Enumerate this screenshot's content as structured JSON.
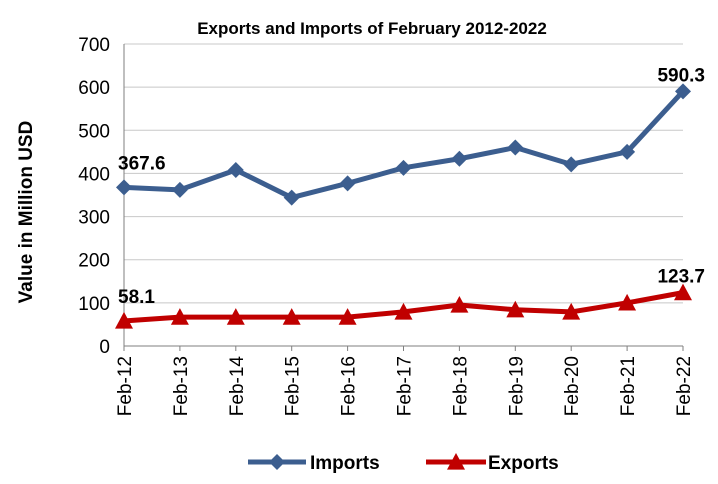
{
  "chart_data": {
    "type": "line",
    "title": "Exports and Imports of February 2012-2022",
    "ylabel": "Value in  Million  USD",
    "xlabel": "",
    "categories": [
      "Feb-12",
      "Feb-13",
      "Feb-14",
      "Feb-15",
      "Feb-16",
      "Feb-17",
      "Feb-18",
      "Feb-19",
      "Feb-20",
      "Feb-21",
      "Feb-22"
    ],
    "ylim": [
      0,
      700
    ],
    "yticks": [
      0,
      100,
      200,
      300,
      400,
      500,
      600,
      700
    ],
    "grid": true,
    "legend": "bottom",
    "series": [
      {
        "name": "Imports",
        "color": "#3C5E8F",
        "marker": "diamond",
        "values": [
          367.6,
          362,
          408,
          344,
          377,
          413,
          434,
          460,
          421,
          450,
          590.3
        ]
      },
      {
        "name": "Exports",
        "color": "#C00000",
        "marker": "triangle",
        "values": [
          58.1,
          67,
          67,
          67,
          67,
          79,
          95,
          84,
          79,
          100,
          123.7
        ]
      }
    ],
    "data_labels": [
      {
        "series": 0,
        "index": 0,
        "text": "367.6"
      },
      {
        "series": 0,
        "index": 10,
        "text": "590.3"
      },
      {
        "series": 1,
        "index": 0,
        "text": "58.1"
      },
      {
        "series": 1,
        "index": 10,
        "text": "123.7"
      }
    ]
  }
}
